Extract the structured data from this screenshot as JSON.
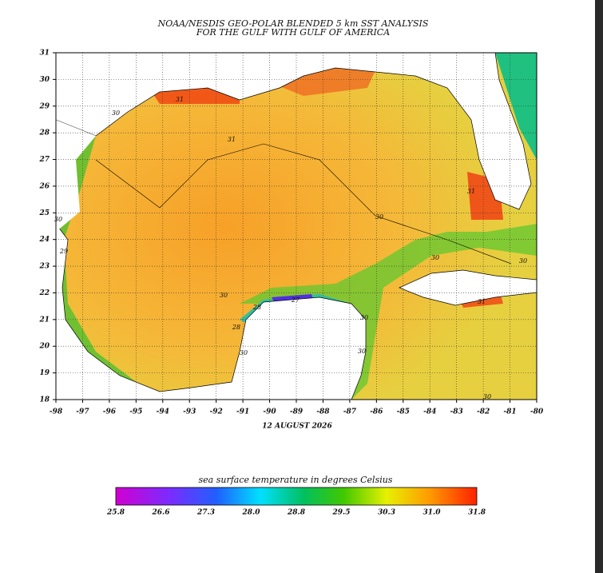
{
  "map": {
    "title": [
      "NOAA/NESDIS GEO-POLAR BLENDED 5 km SST ANALYSIS",
      "FOR THE GULF WITH GULF OF AMERICA"
    ],
    "lon_ticks": [
      -98,
      -97,
      -96,
      -95,
      -94,
      -93,
      -92,
      -91,
      -90,
      -89,
      -88,
      -87,
      -86,
      -85,
      -84,
      -83,
      -82,
      -81,
      -80
    ],
    "lat_ticks": [
      18,
      19,
      20,
      21,
      22,
      23,
      24,
      25,
      26,
      27,
      28,
      29,
      30,
      31
    ],
    "date": "12 AUGUST 2026",
    "colorbar": {
      "label": "sea surface temperature in degrees Celsius",
      "ticks": [
        "25.8",
        "26.6",
        "27.3",
        "28.0",
        "28.8",
        "29.5",
        "30.3",
        "31.0",
        "31.8"
      ]
    },
    "contour_labels": [
      "31",
      "31",
      "30",
      "30",
      "30",
      "31",
      "31",
      "30",
      "28",
      "27",
      "28",
      "30",
      "30",
      "30",
      "30",
      "29",
      "30",
      "30"
    ]
  }
}
